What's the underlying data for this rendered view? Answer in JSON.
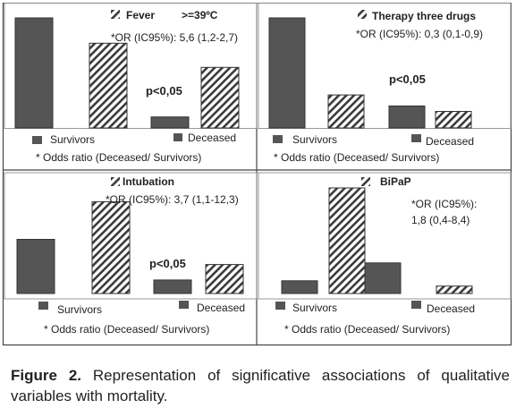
{
  "chart_data": [
    {
      "type": "bar",
      "title": "Fever",
      "subtitle": ">=39ºC",
      "categories": [
        "Survivors",
        "Deceased"
      ],
      "series": [
        {
          "name": "",
          "style": "solid",
          "values": [
            100,
            10
          ]
        },
        {
          "name": "",
          "style": "hatched",
          "values": [
            77,
            55
          ]
        }
      ],
      "ylim": [
        0,
        100
      ],
      "annotations": {
        "or": "*OR (IC95%): 5,6 (1,2-2,7)",
        "p": "p<0,05"
      },
      "legend": {
        "survivors": "Survivors",
        "deceased": "Deceased"
      },
      "footnote": "* Odds ratio (Deceased/ Survivors)"
    },
    {
      "type": "bar",
      "title": "Therapy three drugs",
      "categories": [
        "Survivors",
        "Deceased"
      ],
      "series": [
        {
          "name": "",
          "style": "solid",
          "values": [
            100,
            20
          ]
        },
        {
          "name": "",
          "style": "hatched",
          "values": [
            30,
            15
          ]
        }
      ],
      "ylim": [
        0,
        100
      ],
      "annotations": {
        "or": "*OR (IC95%): 0,3 (0,1-0,9)",
        "p": "p<0,05"
      },
      "legend": {
        "survivors": "Survivors",
        "deceased": "Deceased"
      },
      "footnote": "* Odds ratio (Deceased/ Survivors)"
    },
    {
      "type": "bar",
      "title": "Intubation",
      "categories": [
        "Survivors",
        "Deceased"
      ],
      "series": [
        {
          "name": "",
          "style": "solid",
          "values": [
            56,
            14
          ]
        },
        {
          "name": "",
          "style": "hatched",
          "values": [
            95,
            30
          ]
        }
      ],
      "ylim": [
        0,
        100
      ],
      "annotations": {
        "or": "*OR (IC95%): 3,7 (1,1-12,3)",
        "p": "p<0,05"
      },
      "legend": {
        "survivors": "Survivors",
        "deceased": "Deceased"
      },
      "footnote": "* Odds ratio (Deceased/ Survivors)"
    },
    {
      "type": "bar",
      "title": "BiPaP",
      "categories": [
        "Survivors",
        "Deceased"
      ],
      "series": [
        {
          "name": "",
          "style": "solid",
          "values": [
            12,
            29
          ]
        },
        {
          "name": "",
          "style": "hatched",
          "values": [
            100,
            7
          ]
        }
      ],
      "ylim": [
        0,
        100
      ],
      "annotations": {
        "or_line1": "*OR (IC95%):",
        "or_line2": "1,8 (0,4-8,4)"
      },
      "legend": {
        "survivors": "Survivors",
        "deceased": "Deceased"
      },
      "footnote": "* Odds ratio (Deceased/ Survivors)"
    }
  ],
  "caption": {
    "label": "Figure 2.",
    "text": "Representation of significative associations of qualitative variables with mortality."
  }
}
